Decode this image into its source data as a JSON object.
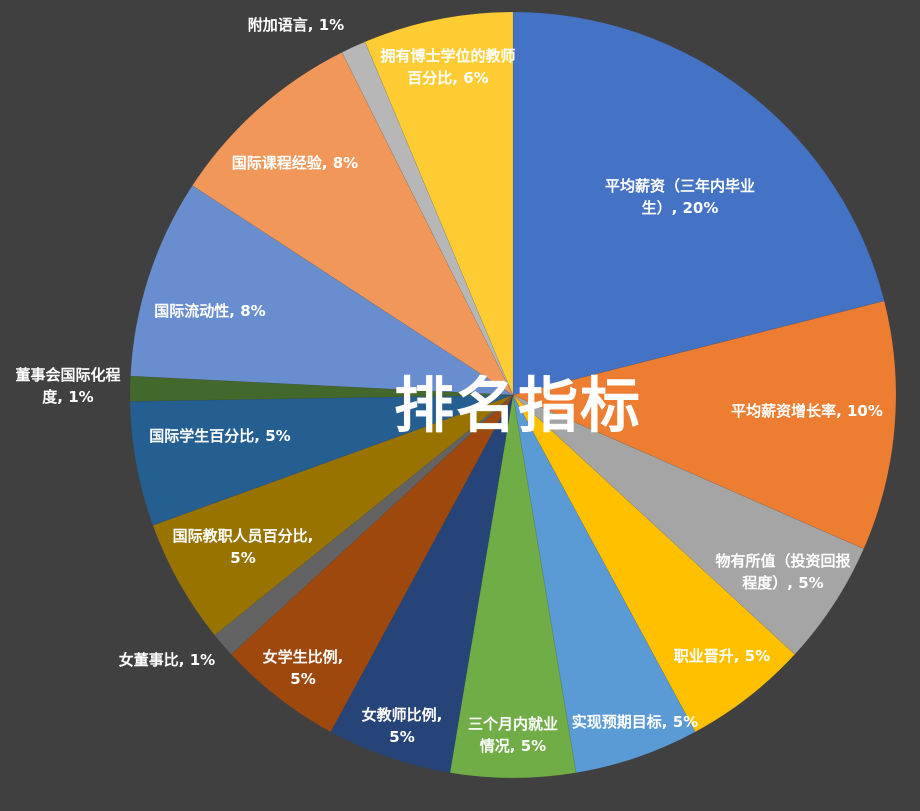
{
  "chart_data": {
    "type": "pie",
    "title": "排名指标",
    "start_angle": "12 o'clock, clockwise",
    "categories": [
      "平均薪资（三年内毕业生）",
      "平均薪资增长率",
      "物有所值（投资回报程度）",
      "职业晋升",
      "实现预期目标",
      "三个月内就业情况",
      "女教师比例",
      "女学生比例",
      "女董事比",
      "国际教职人员百分比",
      "国际学生百分比",
      "董事会国际化程度",
      "国际流动性",
      "国际课程经验",
      "附加语言",
      "拥有博士学位的教师百分比"
    ],
    "values": [
      20,
      10,
      5,
      5,
      5,
      5,
      5,
      5,
      1,
      5,
      5,
      1,
      8,
      8,
      1,
      6
    ],
    "unit": "%",
    "colors": [
      "#4472C4",
      "#ED7D31",
      "#A5A5A5",
      "#FFC000",
      "#5B9BD5",
      "#70AD47",
      "#264478",
      "#9E480E",
      "#636363",
      "#997300",
      "#255E91",
      "#43682B",
      "#698ED0",
      "#F1975A",
      "#B7B7B7",
      "#FFCD33"
    ],
    "legend": "none (data labels)"
  }
}
